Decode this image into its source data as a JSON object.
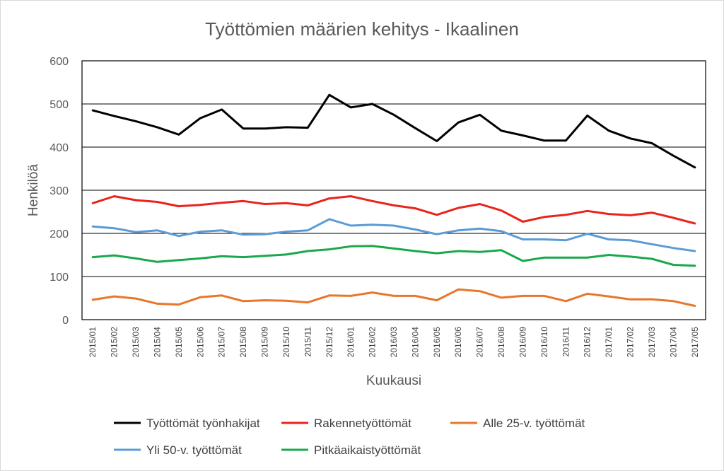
{
  "chart_data": {
    "type": "line",
    "title": "Työttömien määrien kehitys - Ikaalinen",
    "xlabel": "Kuukausi",
    "ylabel": "Henkilöä",
    "ylim": [
      0,
      600
    ],
    "yticks": [
      0,
      100,
      200,
      300,
      400,
      500,
      600
    ],
    "grid": true,
    "legend_position": "bottom",
    "categories": [
      "2015/01",
      "2015/02",
      "2015/03",
      "2015/04",
      "2015/05",
      "2015/06",
      "2015/07",
      "2015/08",
      "2015/09",
      "2015/10",
      "2015/11",
      "2015/12",
      "2016/01",
      "2016/02",
      "2016/03",
      "2016/04",
      "2016/05",
      "2016/06",
      "2016/07",
      "2016/08",
      "2016/09",
      "2016/10",
      "2016/11",
      "2016/12",
      "2017/01",
      "2017/02",
      "2017/03",
      "2017/04",
      "2017/05"
    ],
    "series": [
      {
        "name": "Työttömät työnhakijat",
        "color": "#000000",
        "values": [
          485,
          472,
          460,
          446,
          429,
          467,
          487,
          443,
          443,
          446,
          445,
          521,
          492,
          500,
          475,
          444,
          414,
          457,
          475,
          438,
          427,
          415,
          415,
          473,
          438,
          420,
          409,
          380,
          353
        ]
      },
      {
        "name": "Rakennetyöttömät",
        "color": "#e8241c",
        "values": [
          270,
          286,
          277,
          273,
          263,
          266,
          271,
          275,
          268,
          270,
          265,
          281,
          286,
          275,
          265,
          258,
          243,
          259,
          268,
          253,
          227,
          238,
          243,
          252,
          245,
          242,
          248,
          236,
          223
        ]
      },
      {
        "name": "Alle 25-v. työttömät",
        "color": "#e8762b",
        "values": [
          46,
          54,
          49,
          37,
          35,
          52,
          56,
          43,
          45,
          44,
          40,
          56,
          55,
          63,
          55,
          55,
          45,
          70,
          66,
          51,
          55,
          55,
          43,
          60,
          54,
          47,
          47,
          43,
          32
        ]
      },
      {
        "name": "Yli 50-v. työttömät",
        "color": "#5b9bd5",
        "values": [
          216,
          212,
          203,
          207,
          194,
          204,
          207,
          197,
          198,
          204,
          207,
          233,
          218,
          220,
          218,
          209,
          198,
          207,
          211,
          205,
          186,
          186,
          184,
          199,
          186,
          184,
          175,
          166,
          159
        ]
      },
      {
        "name": "Pitkäaikaistyöttömät",
        "color": "#1aa84c",
        "values": [
          145,
          149,
          142,
          134,
          138,
          142,
          147,
          145,
          148,
          151,
          159,
          163,
          170,
          171,
          165,
          159,
          154,
          159,
          157,
          161,
          136,
          144,
          144,
          144,
          150,
          146,
          141,
          127,
          125
        ]
      }
    ]
  }
}
